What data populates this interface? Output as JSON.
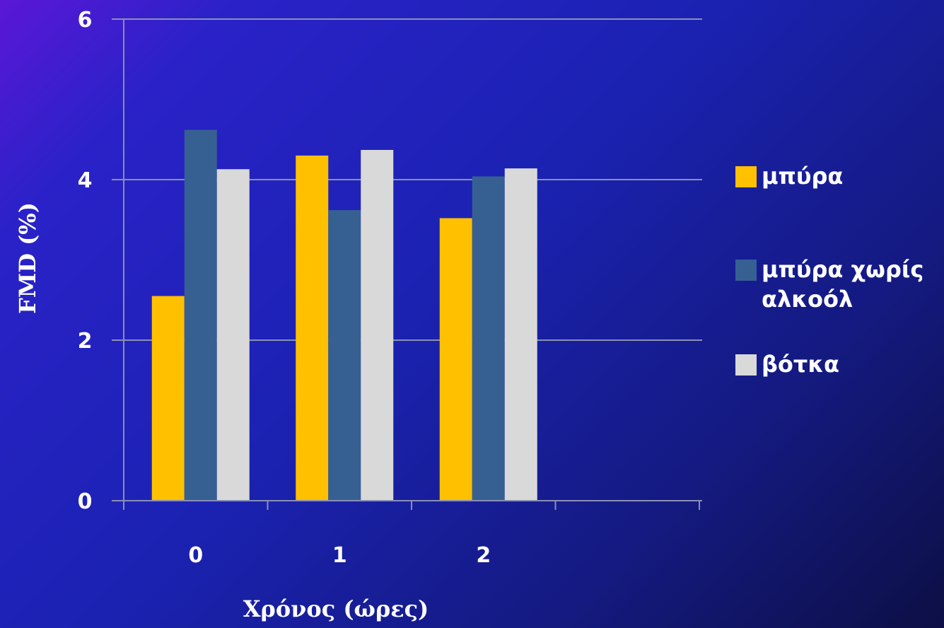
{
  "chart_data": {
    "type": "bar",
    "categories": [
      "0",
      "1",
      "2"
    ],
    "series": [
      {
        "name": "μπύρα",
        "color": "#FFC000",
        "values": [
          2.55,
          4.3,
          3.52
        ]
      },
      {
        "name": "μπύρα χωρίς αλκοόλ",
        "color": "#366092",
        "values": [
          4.62,
          3.62,
          4.04
        ]
      },
      {
        "name": "βότκα",
        "color": "#D9D9D9",
        "values": [
          4.13,
          4.37,
          4.14
        ]
      }
    ],
    "xlabel": "Χρόνος  (ώρες)",
    "ylabel": "FMD (%)",
    "ylim": [
      0,
      6
    ],
    "yticks": [
      "0",
      "2",
      "4",
      "6"
    ],
    "grid": true,
    "legend": "right",
    "legend_labels": [
      {
        "line1": "μπύρα",
        "line2": ""
      },
      {
        "line1": "μπύρα χωρίς",
        "line2": "αλκοόλ"
      },
      {
        "line1": "βότκα",
        "line2": ""
      }
    ]
  }
}
